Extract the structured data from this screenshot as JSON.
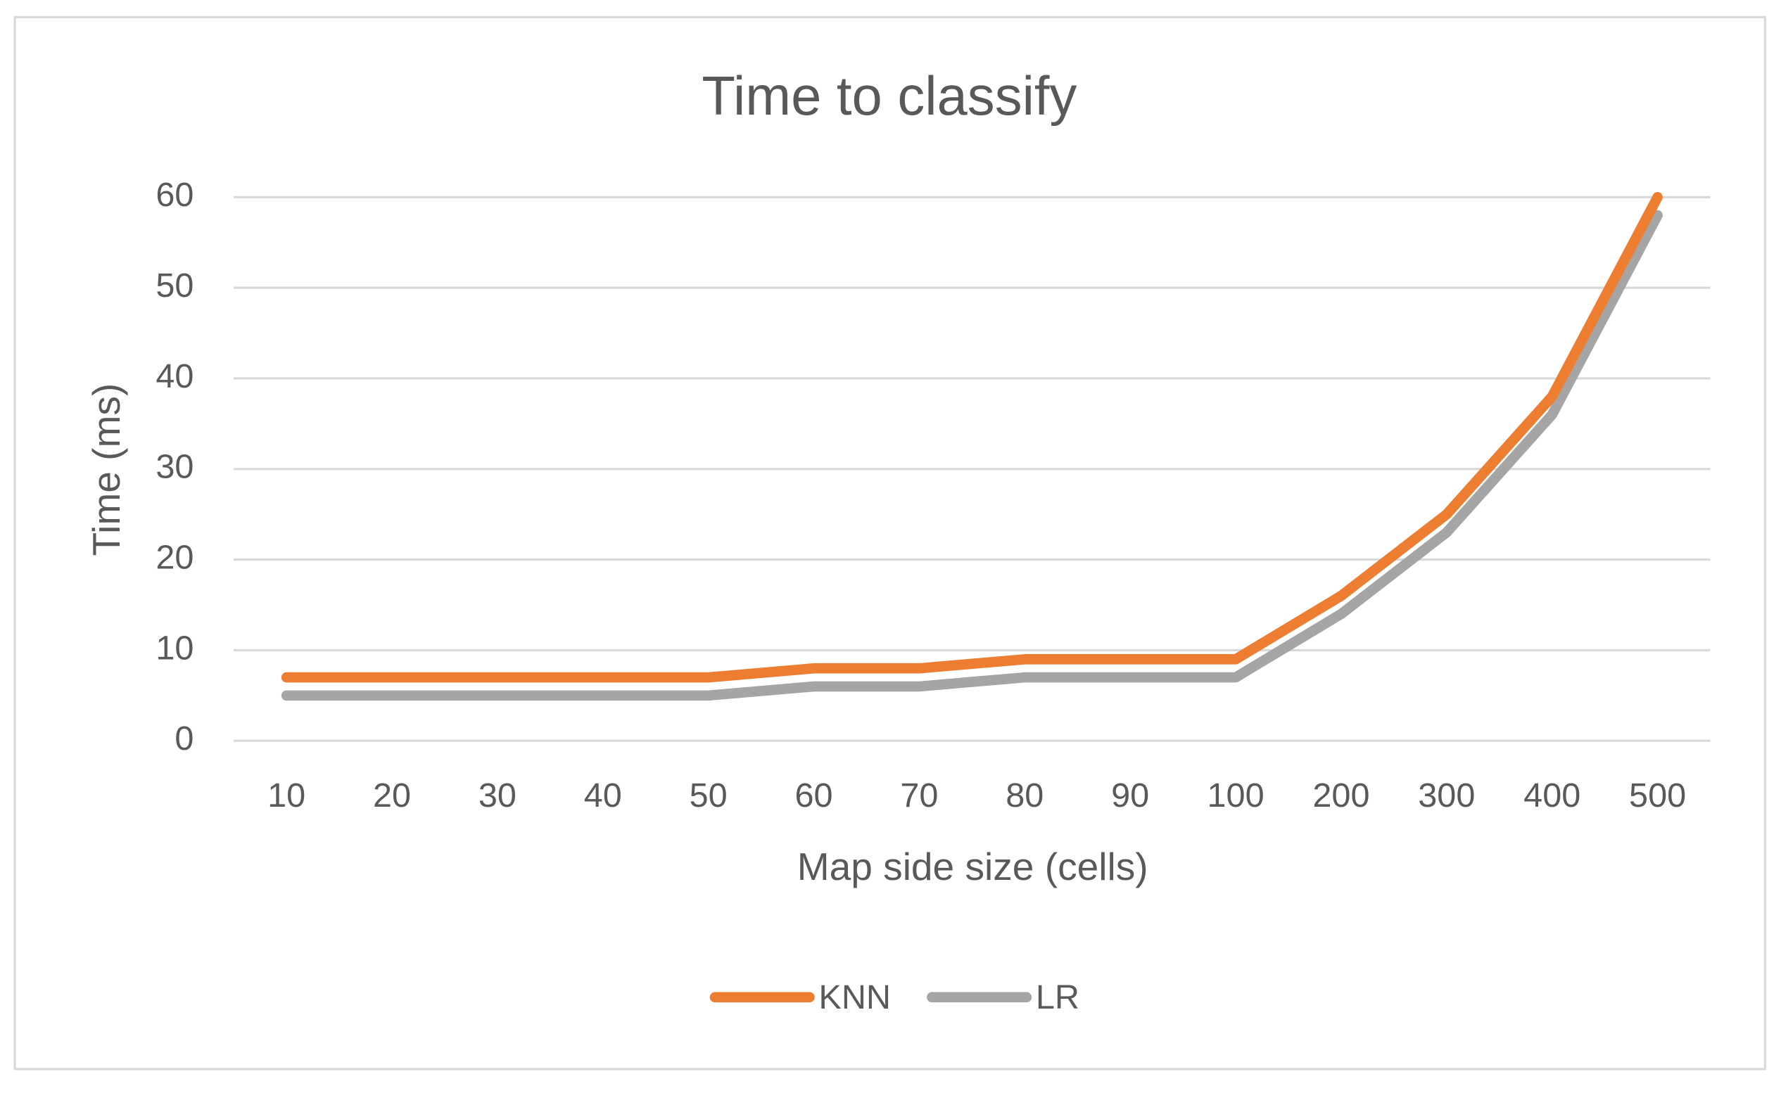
{
  "chart_data": {
    "type": "line",
    "title": "Time to classify",
    "x_label": "Map side size (cells)",
    "y_label": "Time (ms)",
    "categories": [
      "10",
      "20",
      "30",
      "40",
      "50",
      "60",
      "70",
      "80",
      "90",
      "100",
      "200",
      "300",
      "400",
      "500"
    ],
    "series": [
      {
        "name": "KNN",
        "color": "#ED7D31",
        "values": [
          7,
          7,
          7,
          7,
          7,
          8,
          8,
          9,
          9,
          9,
          16,
          25,
          38,
          60
        ]
      },
      {
        "name": "LR",
        "color": "#A5A5A5",
        "values": [
          5,
          5,
          5,
          5,
          5,
          6,
          6,
          7,
          7,
          7,
          14,
          23,
          36,
          58
        ]
      }
    ],
    "ylim": [
      0,
      60
    ],
    "yticks": [
      0,
      10,
      20,
      30,
      40,
      50,
      60
    ],
    "grid": true,
    "legend": "bottom"
  }
}
